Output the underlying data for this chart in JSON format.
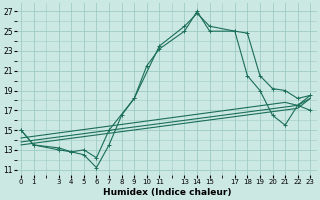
{
  "xlabel": "Humidex (Indice chaleur)",
  "bg_color": "#cce8e2",
  "grid_color": "#9eccc4",
  "line_color": "#1a6e5a",
  "ylim": [
    10.5,
    27.8
  ],
  "xlim": [
    -0.3,
    23.5
  ],
  "yticks": [
    11,
    13,
    15,
    17,
    19,
    21,
    23,
    25,
    27
  ],
  "xticks": [
    0,
    1,
    3,
    4,
    5,
    6,
    7,
    8,
    9,
    10,
    11,
    13,
    14,
    15,
    17,
    18,
    19,
    20,
    21,
    22,
    23
  ],
  "xtick_labels": [
    "0",
    "1",
    "3",
    "4",
    "5",
    "6",
    "7",
    "8",
    "9",
    "10",
    "11",
    "13",
    "14",
    "15",
    "17",
    "18",
    "19",
    "20",
    "21",
    "22",
    "23"
  ],
  "wavy_line1_x": [
    0,
    1,
    3,
    4,
    5,
    6,
    7,
    8,
    9,
    10,
    11,
    13,
    14,
    15,
    17,
    18,
    19,
    20,
    21,
    22,
    23
  ],
  "wavy_line1_y": [
    15.0,
    13.5,
    13.0,
    12.8,
    12.5,
    11.2,
    13.5,
    16.5,
    18.2,
    21.5,
    23.2,
    25.0,
    27.0,
    25.0,
    25.0,
    24.8,
    20.5,
    19.2,
    19.0,
    18.2,
    18.5
  ],
  "wavy_line2_x": [
    0,
    1,
    3,
    4,
    5,
    6,
    7,
    9,
    11,
    13,
    14,
    15,
    17,
    18,
    19,
    20,
    21,
    22,
    23
  ],
  "wavy_line2_y": [
    15.0,
    13.5,
    13.2,
    12.8,
    13.0,
    12.2,
    15.0,
    18.2,
    23.5,
    25.5,
    26.8,
    25.5,
    25.0,
    20.5,
    19.0,
    16.5,
    15.5,
    17.5,
    17.0
  ],
  "trend_line1_x": [
    0,
    22,
    23
  ],
  "trend_line1_y": [
    13.5,
    17.2,
    18.2
  ],
  "trend_line2_x": [
    0,
    22,
    23
  ],
  "trend_line2_y": [
    13.8,
    17.5,
    18.5
  ],
  "trend_line3_x": [
    0,
    21,
    22,
    23
  ],
  "trend_line3_y": [
    14.2,
    17.8,
    17.5,
    18.2
  ]
}
